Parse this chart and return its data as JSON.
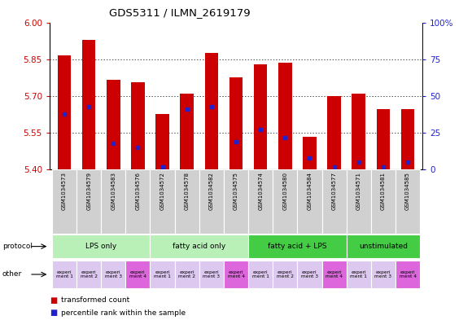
{
  "title": "GDS5311 / ILMN_2619179",
  "samples": [
    "GSM1034573",
    "GSM1034579",
    "GSM1034583",
    "GSM1034576",
    "GSM1034572",
    "GSM1034578",
    "GSM1034582",
    "GSM1034575",
    "GSM1034574",
    "GSM1034580",
    "GSM1034584",
    "GSM1034577",
    "GSM1034571",
    "GSM1034581",
    "GSM1034585"
  ],
  "red_values": [
    5.865,
    5.93,
    5.765,
    5.755,
    5.625,
    5.71,
    5.875,
    5.775,
    5.83,
    5.835,
    5.535,
    5.7,
    5.71,
    5.645,
    5.645
  ],
  "blue_values_pct": [
    38,
    43,
    18,
    15,
    2,
    41,
    43,
    19,
    27,
    22,
    8,
    2,
    5,
    2,
    5
  ],
  "ymin": 5.4,
  "ymax": 6.0,
  "y2min": 0,
  "y2max": 100,
  "yticks": [
    5.4,
    5.55,
    5.7,
    5.85,
    6.0
  ],
  "y2ticks": [
    0,
    25,
    50,
    75,
    100
  ],
  "protocol_groups": [
    {
      "label": "LPS only",
      "start": 0,
      "end": 4,
      "color": "#b8f0b8"
    },
    {
      "label": "fatty acid only",
      "start": 4,
      "end": 8,
      "color": "#b8f0b8"
    },
    {
      "label": "fatty acid + LPS",
      "start": 8,
      "end": 12,
      "color": "#44cc44"
    },
    {
      "label": "unstimulated",
      "start": 12,
      "end": 15,
      "color": "#44cc44"
    }
  ],
  "other_labels": [
    "experi\nment 1",
    "experi\nment 2",
    "experi\nment 3",
    "experi\nment 4",
    "experi\nment 1",
    "experi\nment 2",
    "experi\nment 3",
    "experi\nment 4",
    "experi\nment 1",
    "experi\nment 2",
    "experi\nment 3",
    "experi\nment 4",
    "experi\nment 1",
    "experi\nment 3",
    "experi\nment 4"
  ],
  "other_colors_light": "#ddc8f0",
  "other_colors_dark": "#dd66dd",
  "other_dark_indices": [
    3,
    7,
    11,
    14
  ],
  "bar_width": 0.55,
  "red_color": "#cc0000",
  "blue_color": "#2222cc",
  "grid_color": "#000000",
  "bg_color": "#ffffff",
  "label_color_left": "#cc0000",
  "label_color_right": "#2222cc",
  "sample_bg_color": "#d0d0d0",
  "sample_bg_alt": "#c8c8c8"
}
